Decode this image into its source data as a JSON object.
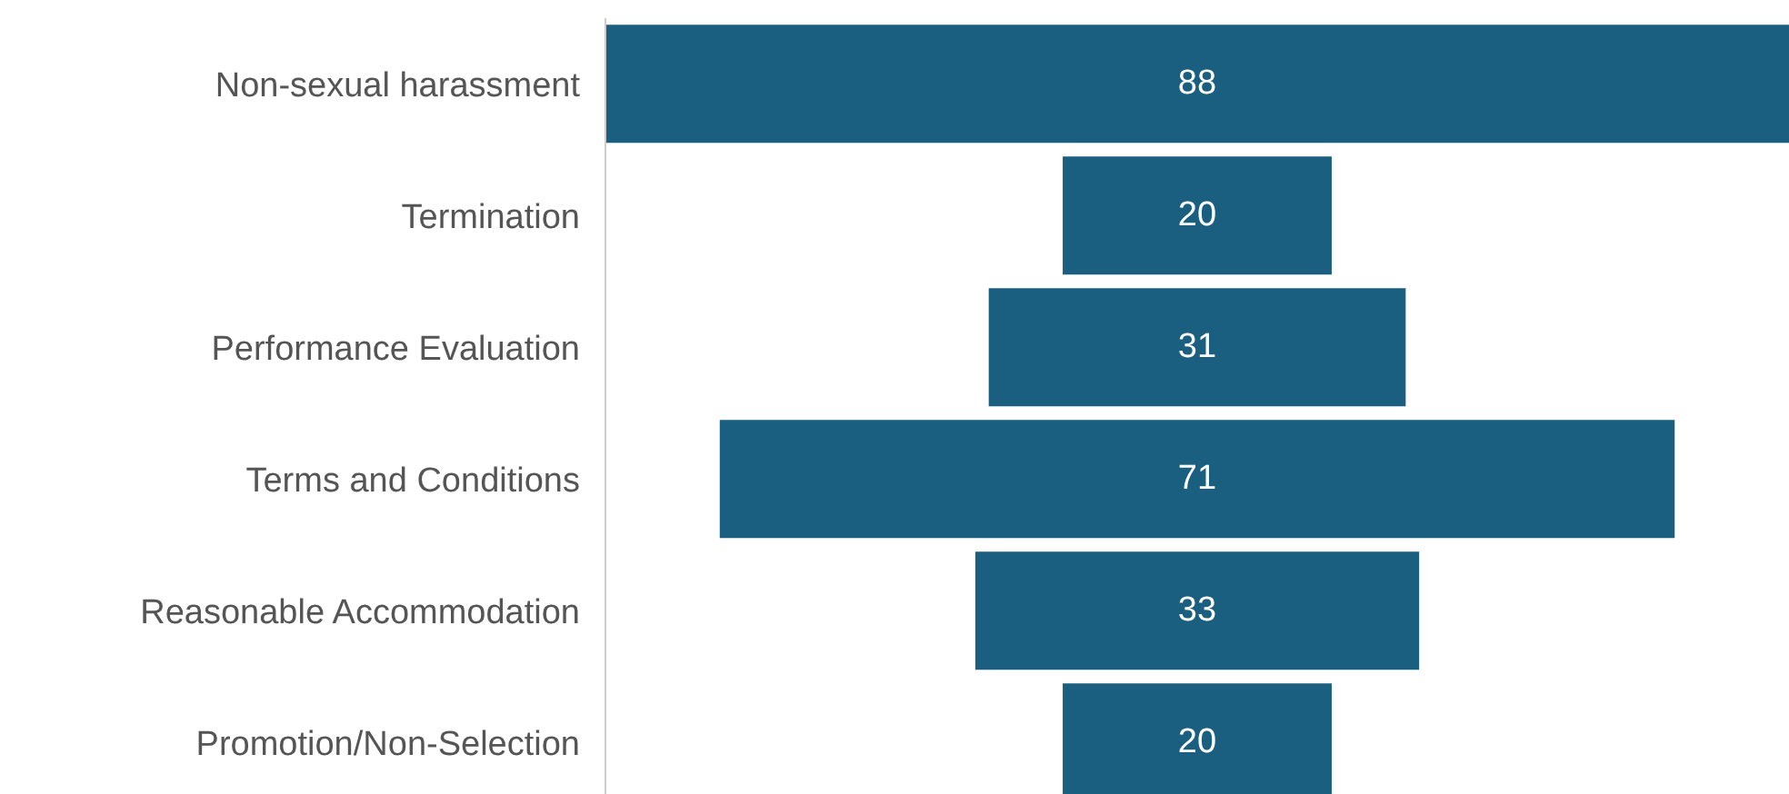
{
  "chart_data": {
    "type": "other",
    "categories": [
      "Non-sexual harassment",
      "Termination",
      "Performance Evaluation",
      "Terms and Conditions",
      "Reasonable Accommodation",
      "Promotion/Non-Selection"
    ],
    "values": [
      88,
      20,
      31,
      71,
      33,
      20
    ],
    "color": "#1a5f80",
    "data_labels": true
  }
}
